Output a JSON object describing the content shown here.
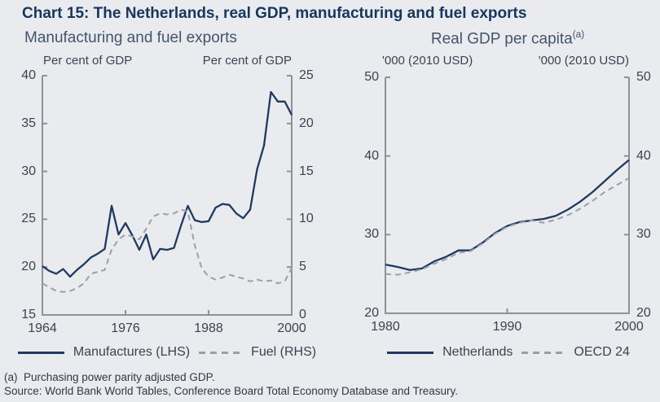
{
  "header": {
    "title": "Chart 15: The Netherlands, real GDP, manufacturing and fuel exports"
  },
  "colors": {
    "background": "#e9ebef",
    "title_navy": "#17365d",
    "subtitle_gray": "#44546a",
    "text": "#3a4450",
    "axis_gray": "#8e9196",
    "series_navy": "#1f3a60",
    "series_gray": "#9aa0a6",
    "footnote": "#2f3944"
  },
  "footnotes": [
    "(a)  Purchasing power parity adjusted GDP.",
    "Source: World Bank World Tables, Conference Board Total Economy Database and Treasury."
  ],
  "chart_data": [
    {
      "type": "line",
      "title": "Manufacturing and fuel exports",
      "left_axis_label": "Per cent of GDP",
      "right_axis_label": "Per cent of GDP",
      "x_range": [
        1964,
        2000
      ],
      "x_step": 1,
      "x_ticks": [
        1964,
        1976,
        1988,
        2000
      ],
      "left_ylim": [
        15,
        40
      ],
      "left_ticks": [
        40,
        35,
        30,
        25,
        20,
        15
      ],
      "right_ylim": [
        0,
        25
      ],
      "right_ticks": [
        25,
        20,
        15,
        10,
        5,
        0
      ],
      "grid": false,
      "legend_position": "bottom",
      "series": [
        {
          "name": "Manufactures (LHS)",
          "axis": "left",
          "style": "solid",
          "values": [
            20.1,
            19.6,
            19.3,
            19.8,
            19.0,
            19.7,
            20.3,
            21.0,
            21.4,
            21.9,
            26.4,
            23.4,
            24.6,
            23.3,
            21.8,
            23.4,
            20.8,
            21.9,
            21.8,
            22.0,
            24.3,
            26.4,
            24.9,
            24.7,
            24.8,
            26.2,
            26.6,
            26.5,
            25.6,
            25.1,
            26.0,
            30.2,
            32.7,
            38.3,
            37.3,
            37.3,
            35.9
          ]
        },
        {
          "name": "Fuel (RHS)",
          "axis": "right",
          "style": "dashed",
          "values": [
            3.3,
            2.9,
            2.5,
            2.4,
            2.5,
            2.8,
            3.3,
            4.3,
            4.5,
            4.7,
            6.8,
            7.9,
            8.4,
            8.2,
            7.9,
            9.0,
            10.3,
            10.6,
            10.5,
            10.6,
            11.0,
            10.8,
            7.3,
            4.9,
            4.0,
            3.7,
            3.9,
            4.2,
            4.0,
            3.8,
            3.5,
            3.7,
            3.5,
            3.6,
            3.3,
            3.5,
            4.9
          ]
        }
      ]
    },
    {
      "type": "line",
      "title": "Real GDP per capita",
      "title_sup": "(a)",
      "left_axis_label": "'000 (2010 USD)",
      "right_axis_label": "'000 (2010 USD)",
      "x_range": [
        1980,
        2000
      ],
      "x_step": 1,
      "x_ticks": [
        1980,
        1990,
        2000
      ],
      "left_ylim": [
        20,
        50
      ],
      "left_ticks": [
        50,
        40,
        30,
        20
      ],
      "right_ylim": [
        20,
        50
      ],
      "right_ticks": [
        50,
        40,
        30,
        20
      ],
      "grid": false,
      "legend_position": "bottom",
      "series": [
        {
          "name": "Netherlands",
          "axis": "left",
          "style": "solid",
          "values": [
            26.2,
            25.9,
            25.5,
            25.7,
            26.6,
            27.2,
            28.0,
            28.0,
            29.0,
            30.2,
            31.1,
            31.6,
            31.8,
            32.0,
            32.4,
            33.2,
            34.2,
            35.4,
            36.8,
            38.2,
            39.5
          ]
        },
        {
          "name": "OECD 24",
          "axis": "left",
          "style": "dashed",
          "values": [
            25.0,
            24.9,
            25.2,
            25.6,
            26.3,
            26.9,
            27.7,
            27.9,
            28.9,
            30.1,
            31.0,
            31.5,
            31.8,
            31.5,
            31.9,
            32.5,
            33.3,
            34.3,
            35.4,
            36.3,
            37.2
          ]
        }
      ]
    }
  ]
}
